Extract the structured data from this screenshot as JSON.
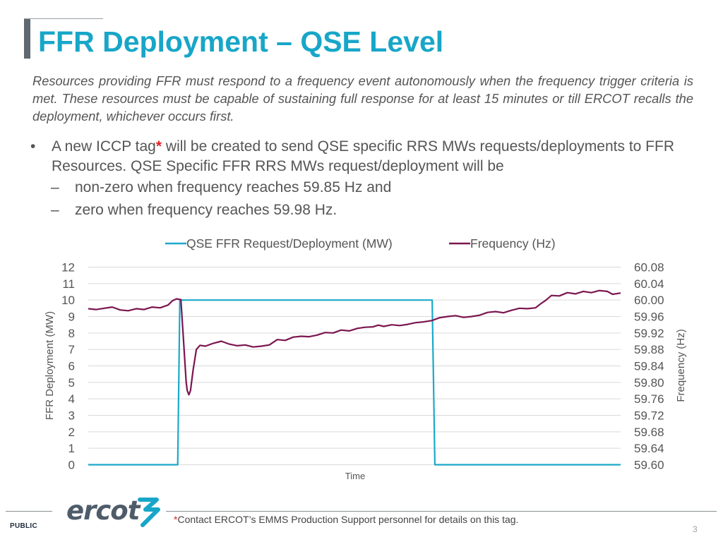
{
  "slide": {
    "title": "FFR Deployment – QSE Level",
    "intro": "Resources providing FFR must respond to a frequency event autonomously when the frequency trigger criteria is met. These resources must be capable of sustaining full response for at least 15 minutes or till ERCOT recalls the deployment, whichever occurs first.",
    "bullet": {
      "marker": "•",
      "text_before": "A new ICCP tag",
      "asterisk": "*",
      "text_after": " will be created to send QSE specific RRS MWs requests/deployments to FFR Resources. QSE Specific FFR RRS MWs request/deployment will be"
    },
    "sub_bullets": [
      {
        "dash": "–",
        "text": "non-zero when frequency reaches 59.85 Hz and"
      },
      {
        "dash": "–",
        "text": "zero when frequency reaches 59.98 Hz."
      }
    ],
    "footnote_asterisk": "*",
    "footnote": "Contact ERCOT’s EMMS Production Support personnel for details on this tag.",
    "classification": "PUBLIC",
    "page_number": "3",
    "logo_text": "ercot",
    "colors": {
      "title": "#18a6c8",
      "text": "#555555",
      "asterisk": "#e31e24",
      "logo": "#4e5c6a",
      "logo_mark": "#18a6c8"
    }
  },
  "chart_data": {
    "type": "line",
    "title": "",
    "xlabel": "Time",
    "ylabel": "FFR Deployment (MW)",
    "y2label": "Frequency (Hz)",
    "ylim": [
      0,
      12
    ],
    "y2lim": [
      59.6,
      60.08
    ],
    "yticks": [
      "0",
      "1",
      "2",
      "3",
      "4",
      "5",
      "6",
      "7",
      "8",
      "9",
      "10",
      "11",
      "12"
    ],
    "y2ticks": [
      "59.60",
      "59.64",
      "59.68",
      "59.72",
      "59.76",
      "59.80",
      "59.84",
      "59.88",
      "59.92",
      "59.96",
      "60.00",
      "60.04",
      "60.08"
    ],
    "xlim": [
      0,
      100
    ],
    "grid": true,
    "legend_position": "top",
    "series": [
      {
        "name": "QSE FFR Request/Deployment (MW)",
        "axis": "left",
        "color": "#1ba9c9",
        "points": [
          [
            0,
            0
          ],
          [
            16.8,
            0
          ],
          [
            17.2,
            10
          ],
          [
            64.6,
            10
          ],
          [
            65.1,
            0
          ],
          [
            100,
            0
          ]
        ]
      },
      {
        "name": "Frequency (Hz)",
        "axis": "right",
        "color": "#7b1650",
        "points": [
          [
            0,
            59.979
          ],
          [
            1.5,
            59.977
          ],
          [
            3,
            59.98
          ],
          [
            4.5,
            59.983
          ],
          [
            6,
            59.976
          ],
          [
            7.5,
            59.974
          ],
          [
            9,
            59.979
          ],
          [
            10.5,
            59.977
          ],
          [
            12,
            59.983
          ],
          [
            13.5,
            59.981
          ],
          [
            15,
            59.988
          ],
          [
            15.8,
            59.998
          ],
          [
            16.6,
            60.003
          ],
          [
            17.4,
            60.001
          ],
          [
            17.9,
            59.9
          ],
          [
            18.2,
            59.84
          ],
          [
            18.4,
            59.8
          ],
          [
            18.6,
            59.78
          ],
          [
            18.9,
            59.77
          ],
          [
            19.2,
            59.78
          ],
          [
            19.7,
            59.83
          ],
          [
            20.3,
            59.88
          ],
          [
            21,
            59.89
          ],
          [
            22,
            59.888
          ],
          [
            23.5,
            59.895
          ],
          [
            25,
            59.9
          ],
          [
            26.5,
            59.893
          ],
          [
            28,
            59.889
          ],
          [
            29.5,
            59.891
          ],
          [
            31,
            59.886
          ],
          [
            32.5,
            59.888
          ],
          [
            34,
            59.891
          ],
          [
            35.5,
            59.904
          ],
          [
            37,
            59.902
          ],
          [
            38.5,
            59.91
          ],
          [
            40,
            59.912
          ],
          [
            41.5,
            59.911
          ],
          [
            43,
            59.915
          ],
          [
            44.5,
            59.921
          ],
          [
            46,
            59.92
          ],
          [
            47.5,
            59.927
          ],
          [
            49,
            59.925
          ],
          [
            50.5,
            59.931
          ],
          [
            52,
            59.934
          ],
          [
            53.5,
            59.935
          ],
          [
            54.5,
            59.939
          ],
          [
            55.5,
            59.936
          ],
          [
            57,
            59.94
          ],
          [
            58.5,
            59.938
          ],
          [
            60,
            59.941
          ],
          [
            61.5,
            59.945
          ],
          [
            63,
            59.947
          ],
          [
            64.5,
            59.95
          ],
          [
            66,
            59.957
          ],
          [
            67.5,
            59.96
          ],
          [
            69,
            59.962
          ],
          [
            70.5,
            59.958
          ],
          [
            72,
            59.96
          ],
          [
            73.5,
            59.963
          ],
          [
            75,
            59.97
          ],
          [
            76.5,
            59.972
          ],
          [
            78,
            59.969
          ],
          [
            79.5,
            59.975
          ],
          [
            81,
            59.98
          ],
          [
            82.5,
            59.979
          ],
          [
            84,
            59.981
          ],
          [
            85,
            59.991
          ],
          [
            86,
            60.0
          ],
          [
            87,
            60.011
          ],
          [
            88.5,
            60.01
          ],
          [
            90,
            60.018
          ],
          [
            91.5,
            60.015
          ],
          [
            93,
            60.021
          ],
          [
            94.5,
            60.018
          ],
          [
            96,
            60.023
          ],
          [
            97.5,
            60.021
          ],
          [
            98.5,
            60.014
          ],
          [
            100,
            60.017
          ]
        ]
      }
    ]
  }
}
